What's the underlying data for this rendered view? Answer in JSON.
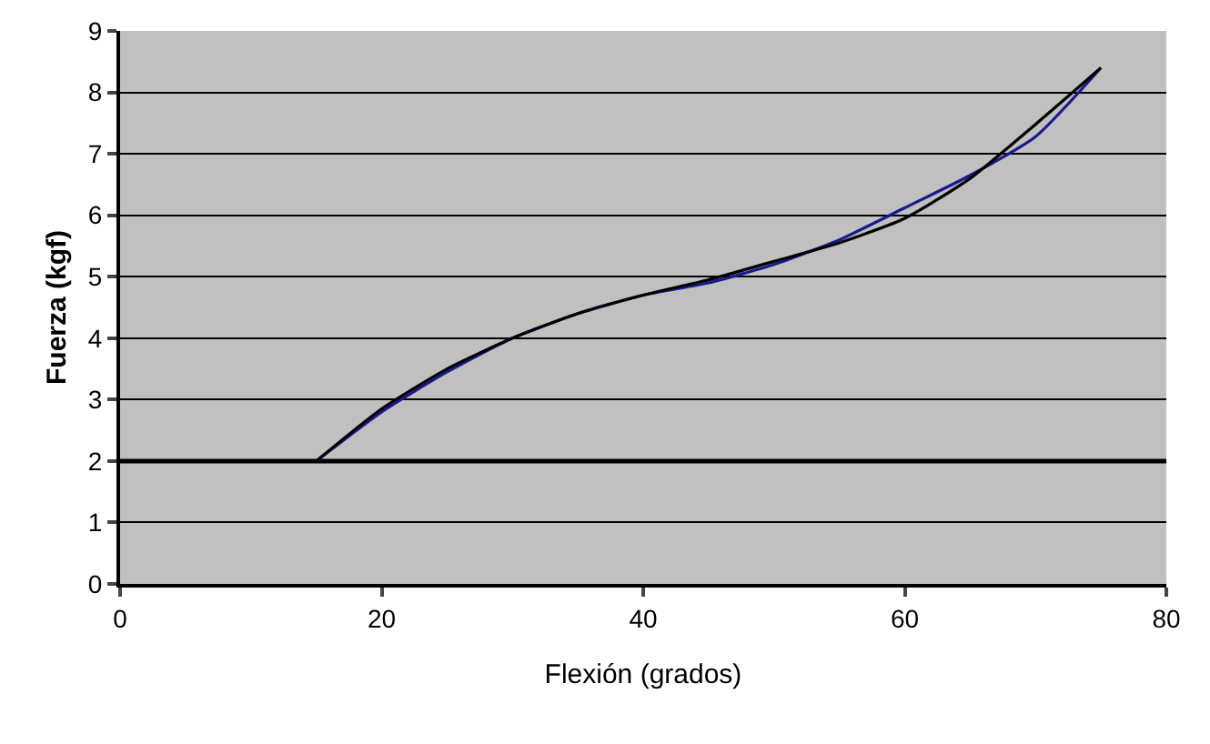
{
  "chart_data": {
    "type": "line",
    "xlabel": "Flexión (grados)",
    "ylabel": "Fuerza (kgf)",
    "series": [
      {
        "color": "#1a1a8c",
        "x": [
          15,
          20,
          25,
          30,
          35,
          40,
          45,
          50,
          55,
          60,
          65,
          70,
          75
        ],
        "values": [
          2,
          2.8,
          3.45,
          4.0,
          4.4,
          4.7,
          4.9,
          5.2,
          5.6,
          6.12,
          6.65,
          7.28,
          8.4
        ]
      },
      {
        "color": "#000000",
        "x": [
          15,
          20,
          25,
          30,
          35,
          40,
          45,
          50,
          55,
          60,
          65,
          70,
          75
        ],
        "values": [
          2,
          2.85,
          3.5,
          4.0,
          4.4,
          4.7,
          4.95,
          5.25,
          5.55,
          5.95,
          6.6,
          7.48,
          8.4
        ]
      }
    ],
    "xlim": [
      0,
      80
    ],
    "xticks": [
      0,
      20,
      40,
      60,
      80
    ],
    "ylim": [
      0,
      9
    ],
    "yticks": [
      0,
      1,
      2,
      3,
      4,
      5,
      6,
      7,
      8,
      9
    ],
    "grid": "y",
    "marker": "none",
    "line_style": "solid",
    "ref_lines": [
      {
        "axis": "y",
        "value": 2,
        "color": "#000000"
      }
    ]
  }
}
